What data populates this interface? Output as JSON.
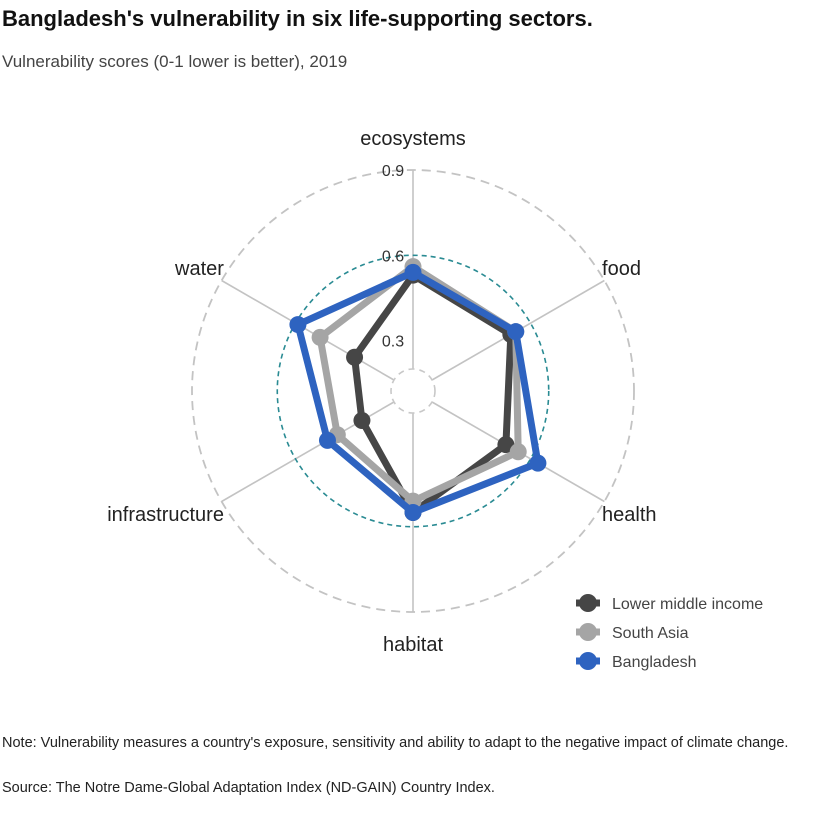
{
  "header": {
    "title": "Bangladesh's vulnerability in six life-supporting sectors.",
    "subtitle": "Vulnerability scores (0-1 lower is better), 2019"
  },
  "chart_data": {
    "type": "radar",
    "axes": [
      "ecosystems",
      "food",
      "health",
      "habitat",
      "infrastructure",
      "water"
    ],
    "radial_ticks": [
      "0.3",
      "0.6",
      "0.9"
    ],
    "radial_range": [
      0.2,
      0.9
    ],
    "highlight_ring": 0.6,
    "series": [
      {
        "name": "Lower middle income",
        "color": "#464646",
        "values": [
          0.53,
          0.52,
          0.5,
          0.55,
          0.33,
          0.36
        ]
      },
      {
        "name": "South Asia",
        "color": "#a5a5a5",
        "values": [
          0.56,
          0.54,
          0.55,
          0.51,
          0.43,
          0.5
        ]
      },
      {
        "name": "Bangladesh",
        "color": "#2e63c0",
        "values": [
          0.54,
          0.54,
          0.63,
          0.55,
          0.47,
          0.59
        ]
      }
    ],
    "legend_position": "bottom-right",
    "grid": true
  },
  "footer": {
    "note": "Note: Vulnerability measures a country's exposure, sensitivity and ability to adapt to the negative impact of climate change.",
    "source": "Source: The Notre Dame-Global Adaptation Index (ND-GAIN) Country Index."
  }
}
